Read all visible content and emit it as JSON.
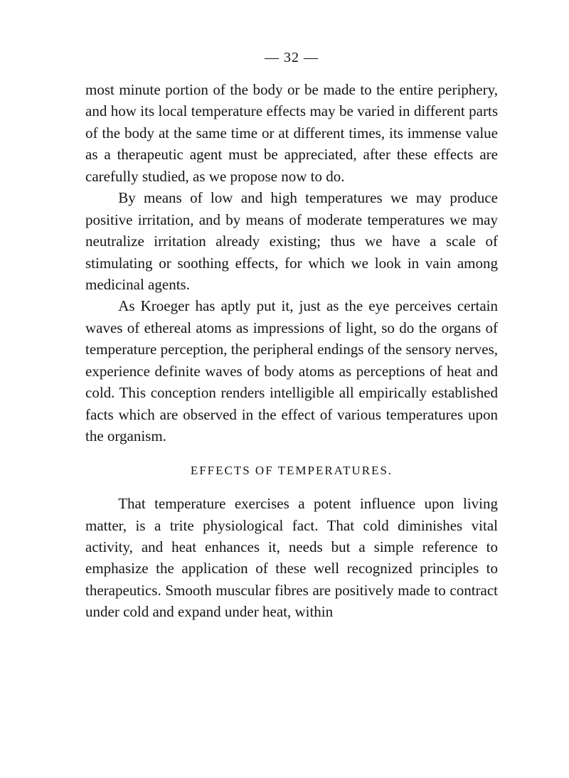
{
  "pageNumber": "— 32 —",
  "paragraphs": {
    "p1": "most minute portion of the body or be made to the entire periphery, and how its local temperature effects may be varied in different parts of the body at the same time or at different times, its immense value as a therapeutic agent must be appreciated, after these effects are carefully studied, as we propose now to do.",
    "p2": "By means of low and high temperatures we may produce positive irritation, and by means of moderate temperatures we may neutralize irritation already existing; thus we have a scale of stimulating or soothing effects, for which we look in vain among medicinal agents.",
    "p3": "As Kroeger has aptly put it, just as the eye perceives certain waves of ethereal atoms as impressions of light, so do the organs of temperature perception, the peripheral endings of the sensory nerves, experience definite waves of body atoms as perceptions of heat and cold. This conception renders intelligible all empirically established facts which are observed in the effect of various temperatures upon the organism.",
    "heading": "EFFECTS OF TEMPERATURES.",
    "p4": "That temperature exercises a potent influence upon living matter, is a trite physiological fact. That cold diminishes vital activity, and heat enhances it, needs but a simple reference to emphasize the application of these well recognized principles to therapeutics. Smooth muscular fibres are positively made to contract under cold and expand under heat, within"
  },
  "colors": {
    "background": "#ffffff",
    "text": "#151515"
  },
  "typography": {
    "body_fontsize": 21,
    "body_lineheight": 1.45,
    "heading_fontsize": 17,
    "heading_letterspacing": 2,
    "pagenum_fontsize": 20,
    "font_family": "Georgia, Times New Roman, serif"
  }
}
